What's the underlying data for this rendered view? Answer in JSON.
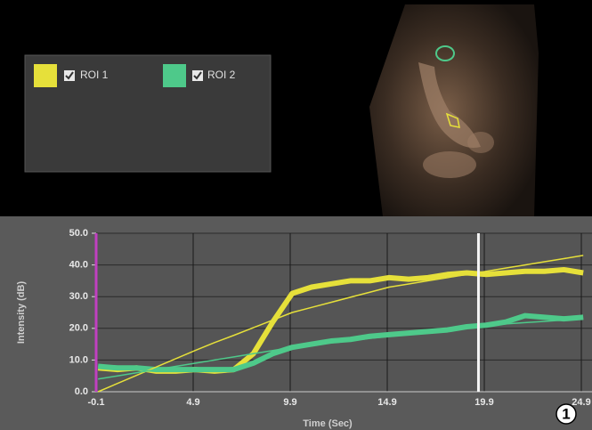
{
  "chart_data": {
    "type": "line",
    "x_label": "Time (Sec)",
    "y_label": "Intensity (dB)",
    "x": [
      0,
      1,
      2,
      3,
      4,
      5,
      6,
      7,
      8,
      9,
      10,
      11,
      12,
      13,
      14,
      15,
      16,
      17,
      18,
      19,
      20,
      21,
      22,
      23,
      24,
      25
    ],
    "series": [
      {
        "name": "ROI 1",
        "color": "#e6e03a",
        "values": [
          7.5,
          7,
          7.5,
          6.5,
          6.5,
          7,
          6.5,
          7,
          12,
          22,
          31,
          33,
          34,
          35,
          35,
          36,
          35.5,
          36,
          37,
          37.5,
          37,
          37.5,
          38,
          38,
          38.5,
          37.5
        ]
      },
      {
        "name": "ROI 2",
        "color": "#4ec98a",
        "values": [
          8,
          7.5,
          7.5,
          7,
          7,
          7,
          7,
          7,
          9,
          12,
          14,
          15,
          16,
          16.5,
          17.5,
          18,
          18.5,
          19,
          19.5,
          20.5,
          21,
          22,
          24,
          23.5,
          23,
          23.5
        ]
      }
    ],
    "fits": [
      {
        "color": "#e6e03a",
        "values": [
          0,
          2.6,
          5.2,
          7.8,
          10.4,
          13,
          15.5,
          17.8,
          20.2,
          22.6,
          25,
          26.6,
          28.2,
          29.8,
          31.4,
          33,
          34,
          35,
          36,
          37,
          38,
          39,
          40,
          41,
          42,
          43
        ]
      },
      {
        "color": "#4ec98a",
        "values": [
          4,
          5,
          6,
          7,
          8,
          9,
          10,
          11,
          12,
          13,
          14,
          14.7,
          15.4,
          16.1,
          16.8,
          17.5,
          18.2,
          18.9,
          19.6,
          20.3,
          21,
          21.4,
          21.8,
          22.2,
          22.6,
          23
        ]
      }
    ],
    "cursor_x": 19.6,
    "xlim": [
      -0.1,
      25.45
    ],
    "xticks": [
      -0.1,
      4.9,
      9.9,
      14.9,
      19.9,
      24.9
    ],
    "ylim": [
      0,
      50
    ],
    "yticks": [
      {
        "value": 0,
        "label": "0.0"
      },
      {
        "value": 10,
        "label": "10.0"
      },
      {
        "value": 20,
        "label": "20.0"
      },
      {
        "value": 30,
        "label": "30.0"
      },
      {
        "value": 40,
        "label": "40.0"
      },
      {
        "value": 50,
        "label": "50.0"
      }
    ],
    "grid": true,
    "annotation": "1"
  }
}
